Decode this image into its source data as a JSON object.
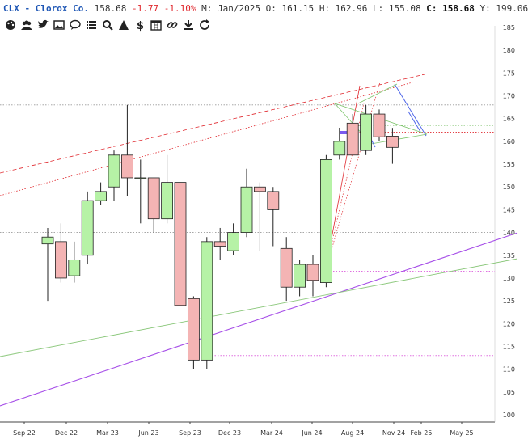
{
  "header": {
    "symbol": "CLX - Clorox Co.",
    "last": "158.68",
    "change": "-1.77",
    "change_pct": "-1.10%",
    "period": "M: Jan/2025",
    "open": "O: 161.15",
    "high": "H: 162.96",
    "low": "L: 155.08",
    "close_label": "C:",
    "close": "158.68",
    "extra": "Y: 199.06"
  },
  "toolbar": {
    "icons": [
      "palette-icon",
      "users-icon",
      "twitter-icon",
      "image-icon",
      "comment-icon",
      "list-icon",
      "search-icon",
      "triangle-icon",
      "dollar-icon",
      "calendar-icon",
      "link-icon",
      "download-icon",
      "refresh-icon"
    ]
  },
  "colors": {
    "up": "#b6f2a6",
    "down": "#f4b4b4",
    "red_channel": "#e0282e",
    "purple_line": "#a64ee8",
    "green_line": "#8ac77a",
    "blue_line": "#4e66e8",
    "magenta_dotted": "#e070e0",
    "gray_dotted": "#999999"
  },
  "chart_data": {
    "type": "candlestick",
    "interval": "monthly",
    "y_axis": {
      "min": 100,
      "max": 185,
      "ticks": [
        185,
        180,
        175,
        170,
        165,
        160,
        155,
        150,
        145,
        140,
        135,
        130,
        125,
        120,
        115,
        110,
        105,
        100
      ]
    },
    "x_axis": {
      "ticks": [
        "Sep 22",
        "Dec 22",
        "Mar 23",
        "Jun 23",
        "Sep 23",
        "Dec 23",
        "Mar 24",
        "Jun 24",
        "Aug 24",
        "Nov 24",
        "Feb 25",
        "May 25"
      ]
    },
    "candles": [
      {
        "o": 137.5,
        "h": 141,
        "l": 125,
        "c": 139
      },
      {
        "o": 138,
        "h": 142,
        "l": 129,
        "c": 130
      },
      {
        "o": 130.5,
        "h": 138,
        "l": 129,
        "c": 134
      },
      {
        "o": 135,
        "h": 149,
        "l": 133,
        "c": 147
      },
      {
        "o": 147,
        "h": 151,
        "l": 146,
        "c": 149
      },
      {
        "o": 150,
        "h": 158,
        "l": 147,
        "c": 157
      },
      {
        "o": 157,
        "h": 168,
        "l": 148,
        "c": 152
      },
      {
        "o": 152,
        "h": 156,
        "l": 142,
        "c": 152
      },
      {
        "o": 152,
        "h": 152,
        "l": 140,
        "c": 143
      },
      {
        "o": 143,
        "h": 157,
        "l": 142,
        "c": 151
      },
      {
        "o": 151,
        "h": 151,
        "l": 124,
        "c": 124
      },
      {
        "o": 125.5,
        "h": 126,
        "l": 110,
        "c": 112
      },
      {
        "o": 112,
        "h": 139,
        "l": 110,
        "c": 138
      },
      {
        "o": 138,
        "h": 141,
        "l": 134,
        "c": 137
      },
      {
        "o": 136,
        "h": 142,
        "l": 135,
        "c": 140
      },
      {
        "o": 140,
        "h": 154,
        "l": 139,
        "c": 150
      },
      {
        "o": 150,
        "h": 151,
        "l": 136,
        "c": 149
      },
      {
        "o": 149,
        "h": 150,
        "l": 137,
        "c": 145
      },
      {
        "o": 136.5,
        "h": 139,
        "l": 125,
        "c": 128
      },
      {
        "o": 128,
        "h": 134,
        "l": 126,
        "c": 133
      },
      {
        "o": 133,
        "h": 135,
        "l": 126,
        "c": 129.5
      },
      {
        "o": 129,
        "h": 157,
        "l": 128,
        "c": 156
      },
      {
        "o": 157,
        "h": 163,
        "l": 156,
        "c": 160
      },
      {
        "o": 164,
        "h": 166,
        "l": 157,
        "c": 157
      },
      {
        "o": 158,
        "h": 168,
        "l": 157,
        "c": 166
      },
      {
        "o": 166,
        "h": 167,
        "l": 160,
        "c": 161
      },
      {
        "o": 161.15,
        "h": 162.96,
        "l": 155.08,
        "c": 158.68
      }
    ],
    "horizontal_levels": [
      {
        "price": 168,
        "style": "gray-dotted"
      },
      {
        "price": 140,
        "style": "gray-dotted"
      },
      {
        "price": 162,
        "style": "red-dotted"
      },
      {
        "price": 163.5,
        "style": "green-dotted"
      },
      {
        "price": 131.5,
        "style": "magenta-dotted"
      },
      {
        "price": 113,
        "style": "magenta-dotted"
      }
    ]
  }
}
